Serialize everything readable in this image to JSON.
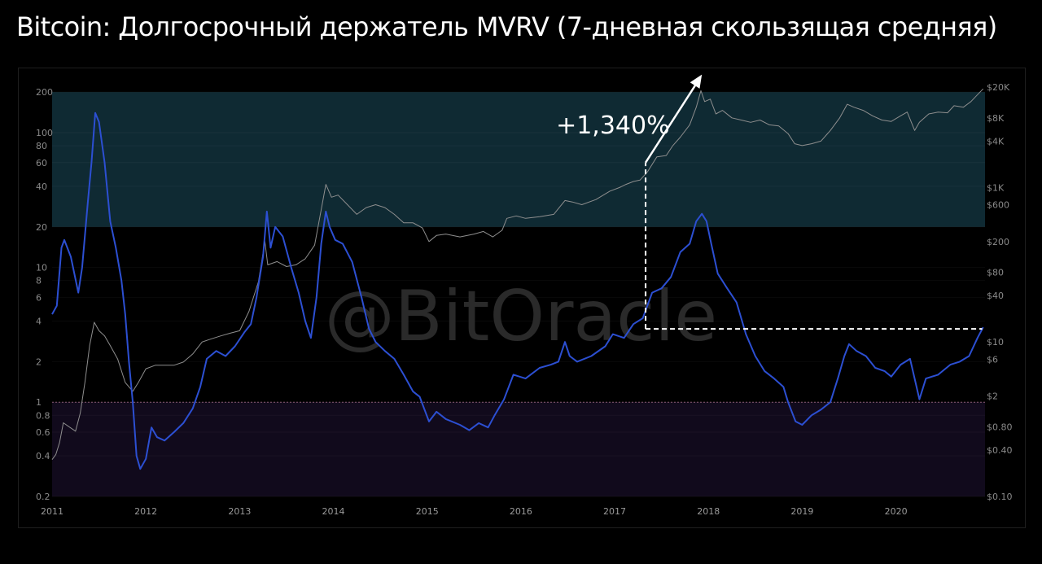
{
  "title": "Bitcoin: Долгосрочный держатель MVRV (7-дневная скользящая средняя)",
  "watermark": "@BitOracle",
  "chart_data": {
    "type": "line",
    "title": "Bitcoin: Долгосрочный держатель MVRV (7-дневная скользящая средняя)",
    "x_ticks": [
      "2011",
      "2012",
      "2013",
      "2014",
      "2015",
      "2016",
      "2017",
      "2018",
      "2019",
      "2020"
    ],
    "xlim": [
      2011.0,
      2020.95
    ],
    "left_axis": {
      "scale": "log",
      "ylim": [
        0.2,
        300
      ],
      "ticks": [
        {
          "v": 200,
          "l": "200"
        },
        {
          "v": 100,
          "l": "100"
        },
        {
          "v": 80,
          "l": "80"
        },
        {
          "v": 60,
          "l": "60"
        },
        {
          "v": 40,
          "l": "40"
        },
        {
          "v": 20,
          "l": "20"
        },
        {
          "v": 10,
          "l": "10"
        },
        {
          "v": 8,
          "l": "8"
        },
        {
          "v": 6,
          "l": "6"
        },
        {
          "v": 4,
          "l": "4"
        },
        {
          "v": 2,
          "l": "2"
        },
        {
          "v": 1,
          "l": "1"
        },
        {
          "v": 0.8,
          "l": "0.8"
        },
        {
          "v": 0.6,
          "l": "0.6"
        },
        {
          "v": 0.4,
          "l": "0.4"
        },
        {
          "v": 0.2,
          "l": "0.2"
        }
      ]
    },
    "right_axis": {
      "scale": "log",
      "ylim": [
        0.1,
        35000
      ],
      "ticks": [
        {
          "v": 20000,
          "l": "$20K"
        },
        {
          "v": 8000,
          "l": "$8K"
        },
        {
          "v": 4000,
          "l": "$4K"
        },
        {
          "v": 1000,
          "l": "$1K"
        },
        {
          "v": 600,
          "l": "$600"
        },
        {
          "v": 200,
          "l": "$200"
        },
        {
          "v": 80,
          "l": "$80"
        },
        {
          "v": 40,
          "l": "$40"
        },
        {
          "v": 10,
          "l": "$10"
        },
        {
          "v": 6,
          "l": "$6"
        },
        {
          "v": 2,
          "l": "$2"
        },
        {
          "v": 0.8,
          "l": "$0.80"
        },
        {
          "v": 0.4,
          "l": "$0.40"
        },
        {
          "v": 0.1,
          "l": "$0.10"
        }
      ]
    },
    "zones": [
      {
        "from": 20,
        "to": 200,
        "color": "#0f2a33"
      },
      {
        "from": 0.2,
        "to": 1,
        "color": "#110a1c"
      }
    ],
    "reference_line": {
      "value": 1,
      "color": "#8a5a72"
    },
    "series": [
      {
        "axis": "left",
        "color": "#2c4fd2",
        "width": 2,
        "points": [
          [
            2011.0,
            4.5
          ],
          [
            2011.05,
            5.2
          ],
          [
            2011.1,
            14
          ],
          [
            2011.13,
            16
          ],
          [
            2011.2,
            12
          ],
          [
            2011.28,
            6.5
          ],
          [
            2011.32,
            10
          ],
          [
            2011.38,
            30
          ],
          [
            2011.42,
            60
          ],
          [
            2011.46,
            140
          ],
          [
            2011.5,
            120
          ],
          [
            2011.56,
            60
          ],
          [
            2011.62,
            22
          ],
          [
            2011.68,
            14
          ],
          [
            2011.74,
            8
          ],
          [
            2011.78,
            4.5
          ],
          [
            2011.82,
            2
          ],
          [
            2011.86,
            1
          ],
          [
            2011.9,
            0.4
          ],
          [
            2011.94,
            0.32
          ],
          [
            2012.0,
            0.38
          ],
          [
            2012.06,
            0.65
          ],
          [
            2012.12,
            0.55
          ],
          [
            2012.2,
            0.52
          ],
          [
            2012.3,
            0.6
          ],
          [
            2012.4,
            0.7
          ],
          [
            2012.5,
            0.9
          ],
          [
            2012.58,
            1.3
          ],
          [
            2012.65,
            2.1
          ],
          [
            2012.75,
            2.4
          ],
          [
            2012.85,
            2.2
          ],
          [
            2012.95,
            2.6
          ],
          [
            2013.05,
            3.3
          ],
          [
            2013.12,
            3.8
          ],
          [
            2013.18,
            6
          ],
          [
            2013.25,
            12
          ],
          [
            2013.29,
            26
          ],
          [
            2013.33,
            14
          ],
          [
            2013.38,
            20
          ],
          [
            2013.46,
            17
          ],
          [
            2013.55,
            10
          ],
          [
            2013.63,
            6.5
          ],
          [
            2013.7,
            4
          ],
          [
            2013.76,
            3
          ],
          [
            2013.82,
            6
          ],
          [
            2013.87,
            15
          ],
          [
            2013.92,
            26
          ],
          [
            2013.96,
            20
          ],
          [
            2014.02,
            16
          ],
          [
            2014.1,
            15
          ],
          [
            2014.2,
            11
          ],
          [
            2014.3,
            6
          ],
          [
            2014.38,
            3.5
          ],
          [
            2014.45,
            2.8
          ],
          [
            2014.55,
            2.4
          ],
          [
            2014.65,
            2.1
          ],
          [
            2014.75,
            1.6
          ],
          [
            2014.85,
            1.2
          ],
          [
            2014.92,
            1.1
          ],
          [
            2015.02,
            0.72
          ],
          [
            2015.1,
            0.85
          ],
          [
            2015.2,
            0.75
          ],
          [
            2015.35,
            0.68
          ],
          [
            2015.45,
            0.62
          ],
          [
            2015.55,
            0.7
          ],
          [
            2015.65,
            0.65
          ],
          [
            2015.72,
            0.8
          ],
          [
            2015.82,
            1.05
          ],
          [
            2015.92,
            1.6
          ],
          [
            2016.05,
            1.5
          ],
          [
            2016.2,
            1.8
          ],
          [
            2016.32,
            1.9
          ],
          [
            2016.4,
            2.0
          ],
          [
            2016.47,
            2.8
          ],
          [
            2016.52,
            2.2
          ],
          [
            2016.6,
            2.0
          ],
          [
            2016.75,
            2.2
          ],
          [
            2016.9,
            2.6
          ],
          [
            2016.98,
            3.2
          ],
          [
            2017.1,
            3.0
          ],
          [
            2017.2,
            3.8
          ],
          [
            2017.3,
            4.2
          ],
          [
            2017.4,
            6.5
          ],
          [
            2017.5,
            7
          ],
          [
            2017.6,
            8.5
          ],
          [
            2017.7,
            13
          ],
          [
            2017.8,
            15
          ],
          [
            2017.87,
            22
          ],
          [
            2017.93,
            25
          ],
          [
            2017.98,
            22
          ],
          [
            2018.03,
            15
          ],
          [
            2018.1,
            9
          ],
          [
            2018.2,
            7
          ],
          [
            2018.3,
            5.5
          ],
          [
            2018.4,
            3.2
          ],
          [
            2018.5,
            2.2
          ],
          [
            2018.6,
            1.7
          ],
          [
            2018.7,
            1.5
          ],
          [
            2018.8,
            1.3
          ],
          [
            2018.85,
            1.0
          ],
          [
            2018.93,
            0.72
          ],
          [
            2019.0,
            0.68
          ],
          [
            2019.1,
            0.8
          ],
          [
            2019.2,
            0.88
          ],
          [
            2019.3,
            1.0
          ],
          [
            2019.38,
            1.5
          ],
          [
            2019.45,
            2.2
          ],
          [
            2019.5,
            2.7
          ],
          [
            2019.58,
            2.4
          ],
          [
            2019.68,
            2.2
          ],
          [
            2019.78,
            1.8
          ],
          [
            2019.88,
            1.7
          ],
          [
            2019.95,
            1.55
          ],
          [
            2020.05,
            1.9
          ],
          [
            2020.15,
            2.1
          ],
          [
            2020.22,
            1.3
          ],
          [
            2020.25,
            1.05
          ],
          [
            2020.32,
            1.5
          ],
          [
            2020.45,
            1.6
          ],
          [
            2020.58,
            1.9
          ],
          [
            2020.68,
            2.0
          ],
          [
            2020.78,
            2.2
          ],
          [
            2020.87,
            3.0
          ],
          [
            2020.93,
            3.6
          ]
        ]
      },
      {
        "axis": "right",
        "color": "#8e8e8e",
        "width": 1,
        "points": [
          [
            2011.0,
            0.3
          ],
          [
            2011.04,
            0.35
          ],
          [
            2011.08,
            0.5
          ],
          [
            2011.12,
            0.9
          ],
          [
            2011.18,
            0.8
          ],
          [
            2011.25,
            0.7
          ],
          [
            2011.3,
            1.2
          ],
          [
            2011.35,
            3
          ],
          [
            2011.4,
            9
          ],
          [
            2011.45,
            18
          ],
          [
            2011.5,
            14
          ],
          [
            2011.56,
            12
          ],
          [
            2011.62,
            9
          ],
          [
            2011.7,
            6
          ],
          [
            2011.78,
            3
          ],
          [
            2011.86,
            2.3
          ],
          [
            2011.92,
            3
          ],
          [
            2012.0,
            4.5
          ],
          [
            2012.1,
            5
          ],
          [
            2012.2,
            5
          ],
          [
            2012.3,
            5
          ],
          [
            2012.4,
            5.5
          ],
          [
            2012.5,
            7
          ],
          [
            2012.6,
            10
          ],
          [
            2012.7,
            11
          ],
          [
            2012.8,
            12
          ],
          [
            2012.9,
            13
          ],
          [
            2013.0,
            14
          ],
          [
            2013.1,
            25
          ],
          [
            2013.2,
            60
          ],
          [
            2013.27,
            200
          ],
          [
            2013.3,
            100
          ],
          [
            2013.4,
            110
          ],
          [
            2013.5,
            95
          ],
          [
            2013.6,
            100
          ],
          [
            2013.7,
            120
          ],
          [
            2013.8,
            180
          ],
          [
            2013.88,
            600
          ],
          [
            2013.92,
            1100
          ],
          [
            2013.98,
            750
          ],
          [
            2014.05,
            800
          ],
          [
            2014.15,
            600
          ],
          [
            2014.25,
            450
          ],
          [
            2014.35,
            550
          ],
          [
            2014.45,
            600
          ],
          [
            2014.55,
            550
          ],
          [
            2014.65,
            450
          ],
          [
            2014.75,
            350
          ],
          [
            2014.85,
            350
          ],
          [
            2014.95,
            300
          ],
          [
            2015.02,
            200
          ],
          [
            2015.1,
            240
          ],
          [
            2015.2,
            250
          ],
          [
            2015.35,
            230
          ],
          [
            2015.5,
            250
          ],
          [
            2015.6,
            270
          ],
          [
            2015.7,
            230
          ],
          [
            2015.8,
            280
          ],
          [
            2015.85,
            400
          ],
          [
            2015.95,
            430
          ],
          [
            2016.05,
            400
          ],
          [
            2016.2,
            420
          ],
          [
            2016.35,
            450
          ],
          [
            2016.47,
            680
          ],
          [
            2016.55,
            650
          ],
          [
            2016.65,
            600
          ],
          [
            2016.8,
            700
          ],
          [
            2016.95,
            900
          ],
          [
            2017.05,
            1000
          ],
          [
            2017.12,
            1100
          ],
          [
            2017.2,
            1200
          ],
          [
            2017.27,
            1250
          ],
          [
            2017.35,
            1600
          ],
          [
            2017.45,
            2500
          ],
          [
            2017.55,
            2600
          ],
          [
            2017.62,
            3500
          ],
          [
            2017.7,
            4500
          ],
          [
            2017.8,
            6500
          ],
          [
            2017.87,
            11000
          ],
          [
            2017.92,
            18000
          ],
          [
            2017.96,
            13000
          ],
          [
            2018.02,
            14000
          ],
          [
            2018.08,
            9000
          ],
          [
            2018.15,
            10000
          ],
          [
            2018.25,
            8000
          ],
          [
            2018.35,
            7500
          ],
          [
            2018.45,
            7000
          ],
          [
            2018.55,
            7500
          ],
          [
            2018.65,
            6500
          ],
          [
            2018.75,
            6300
          ],
          [
            2018.85,
            5000
          ],
          [
            2018.92,
            3700
          ],
          [
            2019.0,
            3500
          ],
          [
            2019.1,
            3700
          ],
          [
            2019.2,
            4000
          ],
          [
            2019.3,
            5500
          ],
          [
            2019.4,
            8000
          ],
          [
            2019.48,
            12000
          ],
          [
            2019.55,
            11000
          ],
          [
            2019.65,
            10000
          ],
          [
            2019.75,
            8500
          ],
          [
            2019.85,
            7500
          ],
          [
            2019.95,
            7200
          ],
          [
            2020.05,
            8500
          ],
          [
            2020.12,
            9500
          ],
          [
            2020.2,
            5500
          ],
          [
            2020.25,
            7000
          ],
          [
            2020.35,
            9000
          ],
          [
            2020.45,
            9500
          ],
          [
            2020.55,
            9300
          ],
          [
            2020.62,
            11500
          ],
          [
            2020.72,
            11000
          ],
          [
            2020.8,
            13000
          ],
          [
            2020.87,
            16000
          ],
          [
            2020.93,
            19000
          ]
        ]
      }
    ],
    "annotation": {
      "text": "+1,340%",
      "from_point": {
        "x": 2017.33,
        "axis_value": 3.5
      },
      "to_point": {
        "x": 2017.33,
        "axis_value": 60
      },
      "arrow_tip": {
        "x": 2017.93,
        "axis_value": 270
      },
      "h_line_to_x": 2020.92,
      "color": "#ffffff"
    }
  }
}
